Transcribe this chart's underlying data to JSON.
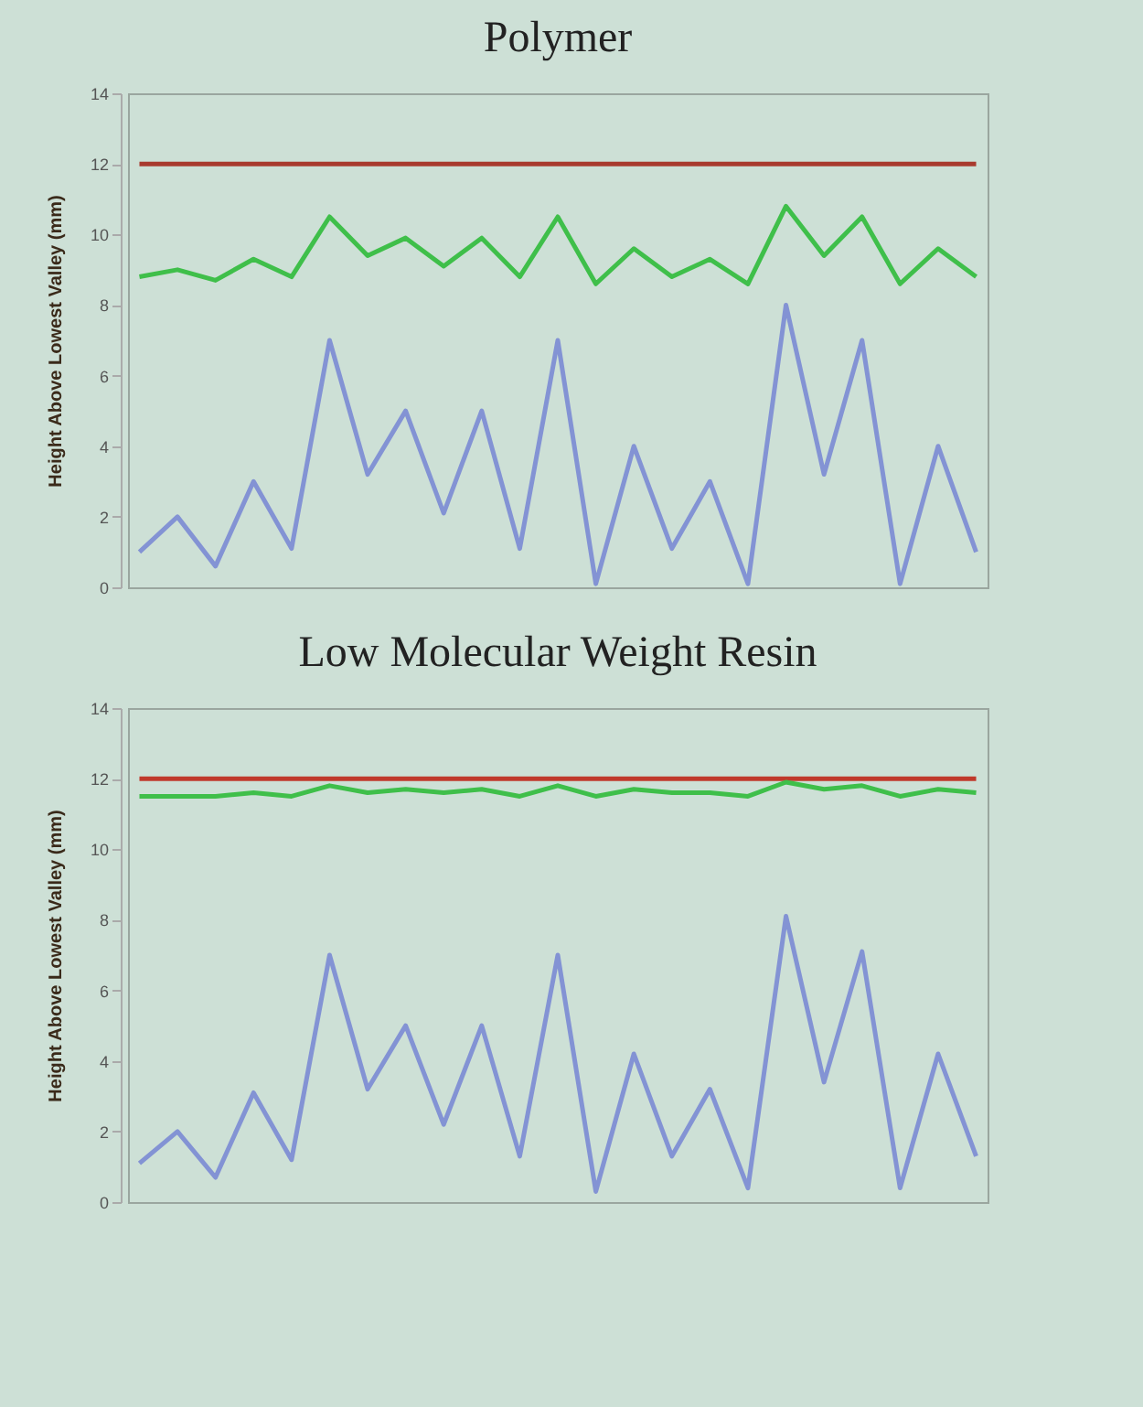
{
  "chart_data": [
    {
      "type": "line",
      "title": "Polymer",
      "ylabel": "Height Above Lowest Valley (mm)",
      "categories": [
        null,
        null,
        null,
        null,
        null,
        null,
        null,
        null,
        null,
        null,
        null,
        null,
        null,
        null,
        null,
        null,
        null,
        null,
        null,
        null,
        null,
        null,
        null
      ],
      "ylim": [
        0,
        14
      ],
      "yticks": [
        0,
        2,
        4,
        6,
        8,
        10,
        12,
        14
      ],
      "tick_labels": "y",
      "grid": false,
      "legend": false,
      "series": [
        {
          "color": "#a83a2e",
          "values": [
            12,
            12,
            12,
            12,
            12,
            12,
            12,
            12,
            12,
            12,
            12,
            12,
            12,
            12,
            12,
            12,
            12,
            12,
            12,
            12,
            12,
            12,
            12
          ]
        },
        {
          "color": "#3fbf4a",
          "values": [
            8.8,
            9,
            8.7,
            9.3,
            8.8,
            10.5,
            9.4,
            9.9,
            9.1,
            9.9,
            8.8,
            10.5,
            8.6,
            9.6,
            8.8,
            9.3,
            8.6,
            10.8,
            9.4,
            10.5,
            8.6,
            9.6,
            8.8
          ]
        },
        {
          "color": "#8393d4",
          "values": [
            1,
            2,
            0.6,
            3,
            1.1,
            7,
            3.2,
            5,
            2.1,
            5,
            1.1,
            7,
            0.1,
            4,
            1.1,
            3,
            0.1,
            8,
            3.2,
            7,
            0.1,
            4,
            1
          ]
        }
      ]
    },
    {
      "type": "line",
      "title": "Low Molecular Weight Resin",
      "ylabel": "Height Above Lowest Valley (mm)",
      "categories": [
        null,
        null,
        null,
        null,
        null,
        null,
        null,
        null,
        null,
        null,
        null,
        null,
        null,
        null,
        null,
        null,
        null,
        null,
        null,
        null,
        null,
        null,
        null
      ],
      "ylim": [
        0,
        14
      ],
      "yticks": [
        0,
        2,
        4,
        6,
        8,
        10,
        12,
        14
      ],
      "tick_labels": "y",
      "grid": false,
      "legend": false,
      "series": [
        {
          "color": "#c0392b",
          "values": [
            12,
            12,
            12,
            12,
            12,
            12,
            12,
            12,
            12,
            12,
            12,
            12,
            12,
            12,
            12,
            12,
            12,
            12,
            12,
            12,
            12,
            12,
            12
          ]
        },
        {
          "color": "#3fbf4a",
          "values": [
            11.5,
            11.5,
            11.5,
            11.6,
            11.5,
            11.8,
            11.6,
            11.7,
            11.6,
            11.7,
            11.5,
            11.8,
            11.5,
            11.7,
            11.6,
            11.6,
            11.5,
            11.9,
            11.7,
            11.8,
            11.5,
            11.7,
            11.6
          ]
        },
        {
          "color": "#8393d4",
          "values": [
            1.1,
            2,
            0.7,
            3.1,
            1.2,
            7,
            3.2,
            5,
            2.2,
            5,
            1.3,
            7,
            0.3,
            4.2,
            1.3,
            3.2,
            0.4,
            8.1,
            3.4,
            7.1,
            0.4,
            4.2,
            1.3
          ]
        }
      ]
    }
  ]
}
